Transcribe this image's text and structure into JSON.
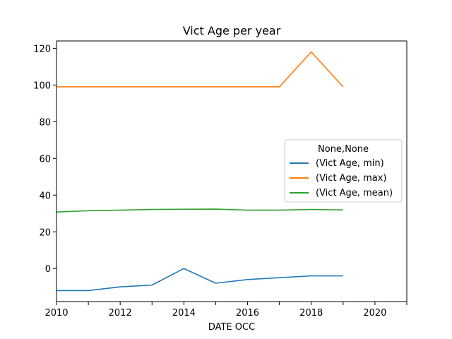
{
  "chart_data": {
    "type": "line",
    "title": "Vict Age per year",
    "xlabel": "DATE OCC",
    "ylabel": "",
    "xlim": [
      2010,
      2021
    ],
    "ylim": [
      -18,
      124
    ],
    "xticks": [
      2010,
      2012,
      2014,
      2016,
      2018,
      2020
    ],
    "yticks": [
      0,
      20,
      40,
      60,
      80,
      100,
      120
    ],
    "grid": false,
    "legend": {
      "title": "None,None",
      "placement": "center-right"
    },
    "x": [
      2010,
      2011,
      2012,
      2013,
      2014,
      2015,
      2016,
      2017,
      2018,
      2019
    ],
    "series": [
      {
        "name": "(Vict Age, min)",
        "color": "#1f77b4",
        "values": [
          -12,
          -12,
          -10,
          -9,
          0,
          -8,
          -6,
          -5,
          -4,
          -4
        ]
      },
      {
        "name": "(Vict Age, max)",
        "color": "#ff7f0e",
        "values": [
          99,
          99,
          99,
          99,
          99,
          99,
          99,
          99,
          118,
          99
        ]
      },
      {
        "name": "(Vict Age, mean)",
        "color": "#2ca02c",
        "values": [
          30.8,
          31.5,
          31.8,
          32.2,
          32.3,
          32.4,
          31.8,
          31.8,
          32.2,
          31.9
        ]
      }
    ]
  }
}
